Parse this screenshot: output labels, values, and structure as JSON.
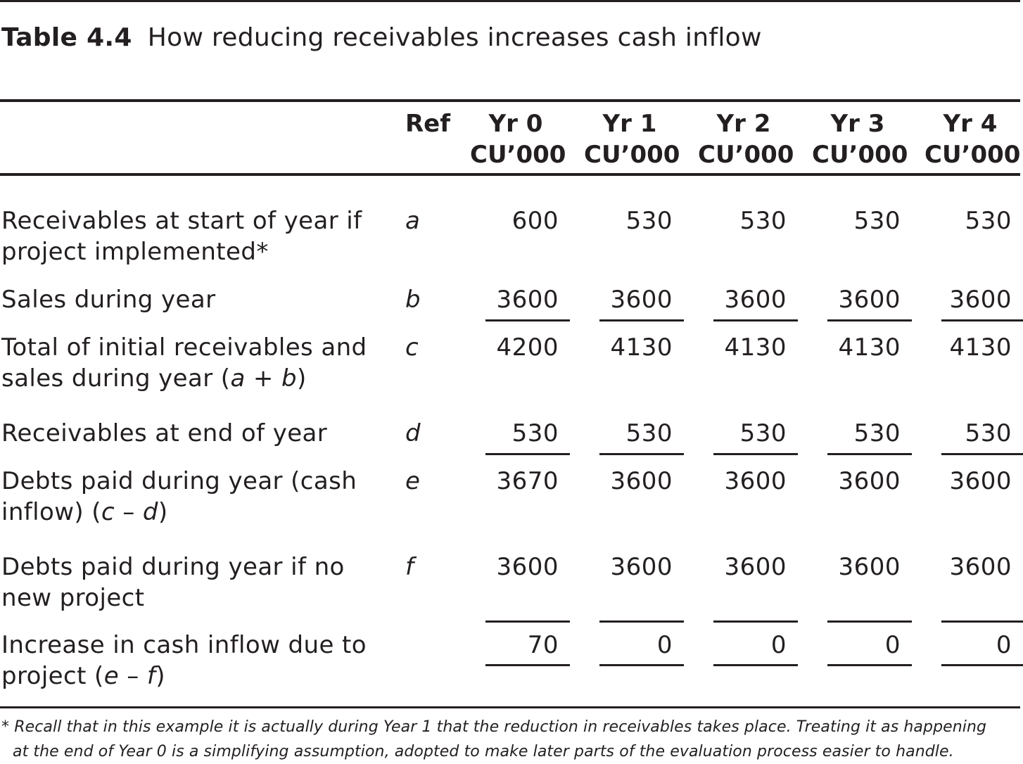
{
  "caption": {
    "number": "Table 4.4",
    "title": "How reducing receivables increases cash inflow"
  },
  "header": {
    "ref": "Ref",
    "columns": [
      {
        "year": "Yr 0",
        "unit": "CU’000"
      },
      {
        "year": "Yr 1",
        "unit": "CU’000"
      },
      {
        "year": "Yr 2",
        "unit": "CU’000"
      },
      {
        "year": "Yr 3",
        "unit": "CU’000"
      },
      {
        "year": "Yr 4",
        "unit": "CU’000"
      }
    ]
  },
  "rows": [
    {
      "line1": "Receivables at start of year if",
      "line2": "project implemented*",
      "ref": "a",
      "values": [
        "600",
        "530",
        "530",
        "530",
        "530"
      ]
    },
    {
      "line1": "Sales during year",
      "line2": "",
      "ref": "b",
      "values": [
        "3600",
        "3600",
        "3600",
        "3600",
        "3600"
      ]
    },
    {
      "line1": "Total of initial receivables and",
      "line2_pre": "sales during year (",
      "line2_a": "a",
      "line2_mid": " + ",
      "line2_b": "b",
      "line2_post": ")",
      "ref": "c",
      "values": [
        "4200",
        "4130",
        "4130",
        "4130",
        "4130"
      ]
    },
    {
      "line1": "Receivables at end of year",
      "line2": "",
      "ref": "d",
      "values": [
        "530",
        "530",
        "530",
        "530",
        "530"
      ]
    },
    {
      "line1": "Debts paid during year (cash",
      "line2_pre": "inflow) (",
      "line2_a": "c",
      "line2_mid": " – ",
      "line2_b": "d",
      "line2_post": ")",
      "ref": "e",
      "values": [
        "3670",
        "3600",
        "3600",
        "3600",
        "3600"
      ]
    },
    {
      "line1": "Debts paid during year if no",
      "line2": "new project",
      "ref": "f",
      "values": [
        "3600",
        "3600",
        "3600",
        "3600",
        "3600"
      ]
    },
    {
      "line1": "Increase in cash inflow due to",
      "line2_pre": "project (",
      "line2_a": "e",
      "line2_mid": " – ",
      "line2_b": "f",
      "line2_post": ")",
      "ref": "",
      "values": [
        "70",
        "0",
        "0",
        "0",
        "0"
      ]
    }
  ],
  "footnote": {
    "line1": "* Recall that in this example it is actually during Year 1 that the reduction in receivables takes place. Treating it as happening",
    "line2": "at the end of Year 0 is a simplifying assumption, adopted to make later parts of the evaluation process easier to handle."
  }
}
